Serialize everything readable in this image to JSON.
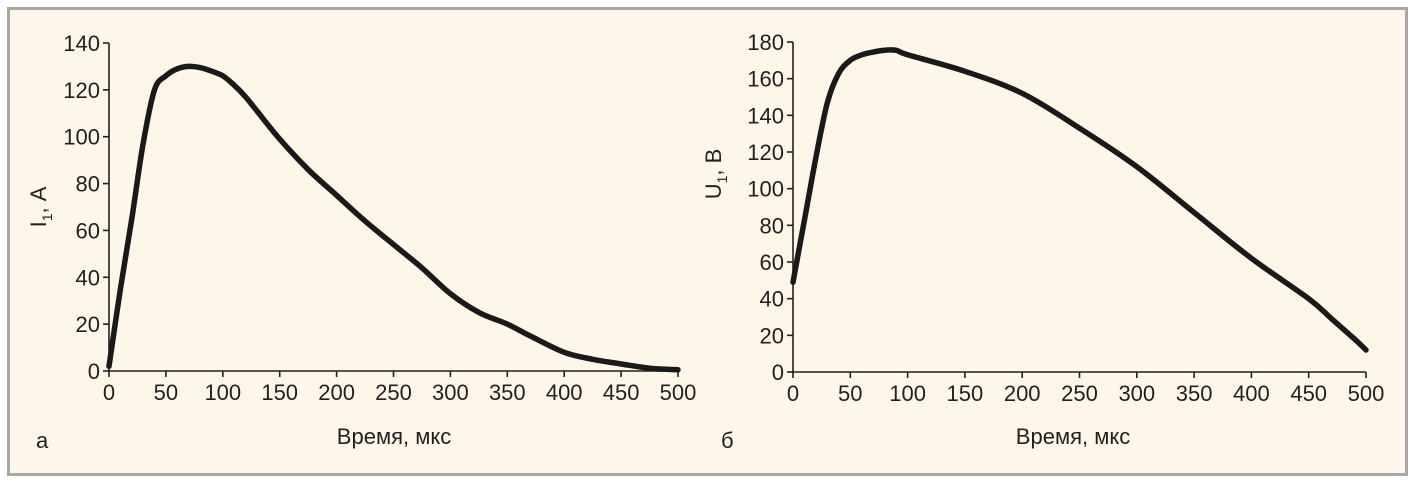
{
  "colors": {
    "background": "#fdf7e9",
    "border": "#a7a7a7",
    "curve": "#1a1a1a"
  },
  "chart_data": [
    {
      "type": "line",
      "panel_label": "а",
      "xlabel": "Время, мкс",
      "ylabel_main": "I",
      "ylabel_sub": "1",
      "ylabel_rest": ", А",
      "xlim": [
        0,
        500
      ],
      "ylim": [
        0,
        140
      ],
      "xticks": [
        0,
        50,
        100,
        150,
        200,
        250,
        300,
        350,
        400,
        450,
        500
      ],
      "yticks": [
        0,
        20,
        40,
        60,
        80,
        100,
        120,
        140
      ],
      "grid": false,
      "series": [
        {
          "x": [
            0,
            10,
            20,
            30,
            40,
            50,
            60,
            70,
            80,
            90,
            100,
            110,
            120,
            130,
            150,
            175,
            200,
            225,
            250,
            275,
            300,
            325,
            350,
            370,
            400,
            425,
            450,
            470,
            480,
            500
          ],
          "y": [
            2,
            35,
            65,
            97,
            120,
            126,
            129,
            130,
            129.5,
            128,
            126,
            122,
            117,
            111,
            99,
            86,
            75,
            64,
            54,
            44,
            33,
            25,
            20,
            15,
            8,
            5,
            3,
            1.5,
            1,
            0.5
          ]
        }
      ]
    },
    {
      "type": "line",
      "panel_label": "б",
      "xlabel": "Время, мкс",
      "ylabel_main": "U",
      "ylabel_sub": "1",
      "ylabel_rest": ", В",
      "xlim": [
        0,
        500
      ],
      "ylim": [
        0,
        180
      ],
      "xticks": [
        0,
        50,
        100,
        150,
        200,
        250,
        300,
        350,
        400,
        450,
        500
      ],
      "yticks": [
        0,
        20,
        40,
        60,
        80,
        100,
        120,
        140,
        160,
        180
      ],
      "grid": false,
      "series": [
        {
          "x": [
            0,
            10,
            20,
            30,
            40,
            50,
            60,
            70,
            80,
            90,
            100,
            150,
            200,
            250,
            300,
            350,
            400,
            450,
            470,
            490,
            500
          ],
          "y": [
            49,
            83,
            117,
            147,
            163,
            170,
            173,
            174.5,
            175.5,
            175.5,
            173,
            164,
            152,
            133,
            112,
            87,
            62,
            40,
            29,
            18,
            12
          ]
        }
      ]
    }
  ]
}
